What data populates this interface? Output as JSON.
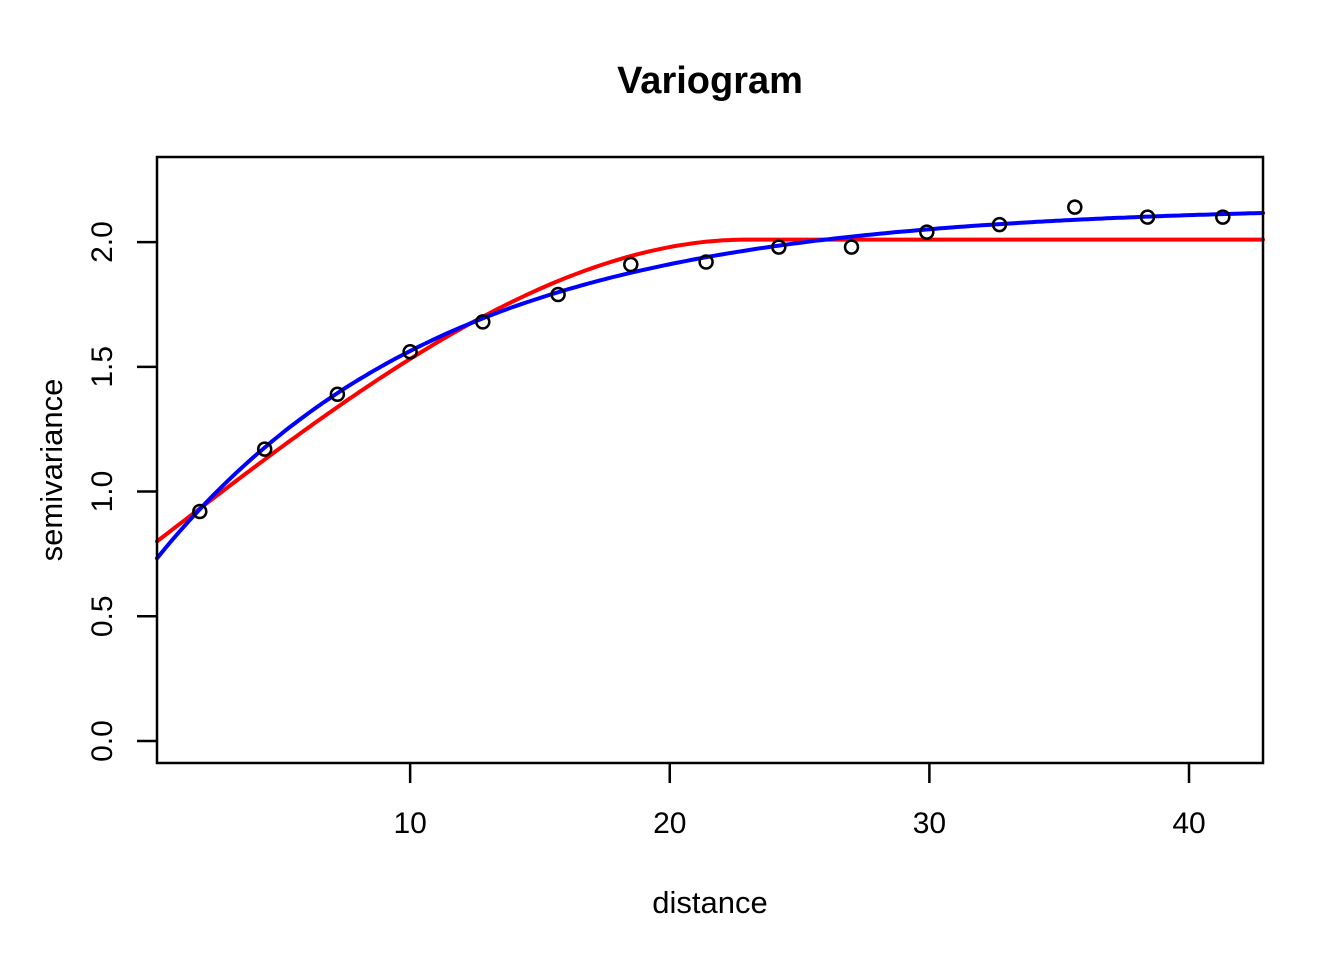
{
  "window": {
    "background": "#ffffff"
  },
  "chart_data": {
    "type": "scatter+line",
    "title": "Variogram",
    "xlabel": "distance",
    "ylabel": "semivariance",
    "xlim": [
      0.25,
      42.85
    ],
    "ylim": [
      -0.088,
      2.341
    ],
    "x_ticks": [
      {
        "value": 10,
        "label": "10"
      },
      {
        "value": 20,
        "label": "20"
      },
      {
        "value": 30,
        "label": "30"
      },
      {
        "value": 40,
        "label": "40"
      }
    ],
    "y_ticks": [
      {
        "value": 0.0,
        "label": "0.0"
      },
      {
        "value": 0.5,
        "label": "0.5"
      },
      {
        "value": 1.0,
        "label": "1.0"
      },
      {
        "value": 1.5,
        "label": "1.5"
      },
      {
        "value": 2.0,
        "label": "2.0"
      }
    ],
    "grid": false,
    "legend": "none",
    "empirical_points": {
      "name": "empirical semivariance",
      "marker": "open-circle",
      "color": "#000000",
      "x": [
        1.9,
        4.4,
        7.2,
        10.0,
        12.8,
        15.7,
        18.5,
        21.4,
        24.2,
        27.0,
        29.9,
        32.7,
        35.6,
        38.4,
        41.3
      ],
      "y": [
        0.92,
        1.17,
        1.39,
        1.56,
        1.68,
        1.79,
        1.91,
        1.92,
        1.98,
        1.98,
        2.04,
        2.07,
        2.14,
        2.1,
        2.1
      ]
    },
    "fit_lines": [
      {
        "name": "spherical model fit",
        "model": "spherical",
        "color": "#FF0000",
        "nugget": 0.78,
        "partial_sill": 1.23,
        "range": 23,
        "sill": 2.01
      },
      {
        "name": "exponential model fit",
        "model": "exponential",
        "color": "#0000FF",
        "nugget": 0.7,
        "partial_sill": 1.446,
        "range": 11
      }
    ]
  }
}
